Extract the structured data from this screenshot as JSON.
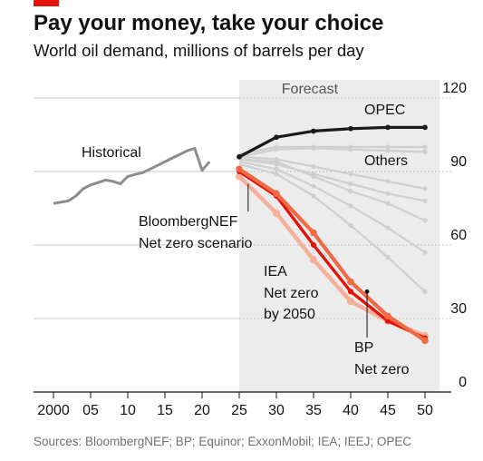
{
  "header": {
    "title": "Pay your money, take your choice",
    "subtitle": "World oil demand, millions of barrels per day",
    "accent_color": "#e3120b"
  },
  "footer": {
    "source": "Sources: BloombergNEF; BP; Equinor; ExxonMobil; IEA; IEEJ; OPEC"
  },
  "chart_data": {
    "type": "line",
    "x_tick_labels": [
      "2000",
      "05",
      "10",
      "15",
      "20",
      "25",
      "30",
      "35",
      "40",
      "45",
      "50"
    ],
    "x_ticks": [
      2000,
      2005,
      2010,
      2015,
      2020,
      2025,
      2030,
      2035,
      2040,
      2045,
      2050
    ],
    "xlim": [
      1997,
      2052
    ],
    "y_ticks": [
      0,
      30,
      60,
      90,
      120
    ],
    "y_tick_labels": [
      "0",
      "30",
      "60",
      "90",
      "120"
    ],
    "ylim": [
      0,
      120
    ],
    "y_axis_side": "right",
    "grid": true,
    "forecast_region": {
      "label": "Forecast",
      "from": 2025,
      "to": 2050
    },
    "colors": {
      "historical": "#8c8c8c",
      "opec": "#1a1a1a",
      "others": "#cfcfcf",
      "bloombergnef": "#e3120b",
      "iea": "#f5b09a",
      "bp": "#f06a45",
      "forecast_shade": "#ececec"
    },
    "series": [
      {
        "key": "historical",
        "label": "Historical",
        "x": [
          2000,
          2001,
          2002,
          2003,
          2004,
          2005,
          2006,
          2007,
          2008,
          2009,
          2010,
          2011,
          2012,
          2013,
          2014,
          2015,
          2016,
          2017,
          2018,
          2019,
          2020,
          2021
        ],
        "y": [
          77,
          77.5,
          78,
          80,
          83,
          84.5,
          85.5,
          86.5,
          86,
          85,
          88,
          88.8,
          89.5,
          91,
          92.5,
          94,
          95.5,
          97,
          98.5,
          99.5,
          90.5,
          94
        ]
      },
      {
        "key": "opec",
        "label": "OPEC",
        "x": [
          2025,
          2030,
          2035,
          2040,
          2045,
          2050
        ],
        "y": [
          96,
          104,
          106.5,
          107.5,
          108,
          108
        ]
      },
      {
        "key": "others",
        "label": "Others",
        "lines": [
          {
            "x": [
              2025,
              2030,
              2035,
              2040,
              2045,
              2050
            ],
            "y": [
              97,
              100,
              100,
              100,
              100,
              100
            ]
          },
          {
            "x": [
              2025,
              2030,
              2035,
              2040,
              2045,
              2050
            ],
            "y": [
              96,
              99,
              99.5,
              99,
              98.5,
              98
            ]
          },
          {
            "x": [
              2025,
              2030,
              2035,
              2040,
              2045,
              2050
            ],
            "y": [
              96,
              95,
              92,
              89,
              86,
              83
            ]
          },
          {
            "x": [
              2025,
              2030,
              2035,
              2040,
              2045,
              2050
            ],
            "y": [
              95,
              93,
              89,
              85,
              81,
              78
            ]
          },
          {
            "x": [
              2025,
              2030,
              2035,
              2040,
              2045,
              2050
            ],
            "y": [
              95,
              94,
              88,
              82,
              77,
              70
            ]
          },
          {
            "x": [
              2025,
              2030,
              2035,
              2040,
              2045,
              2050
            ],
            "y": [
              94,
              91,
              84,
              76,
              67,
              57
            ]
          },
          {
            "x": [
              2025,
              2030,
              2035,
              2040,
              2045,
              2050
            ],
            "y": [
              93,
              89,
              80,
              68,
              55,
              41
            ]
          }
        ]
      },
      {
        "key": "iea",
        "label": "IEA Net zero by 2050",
        "x": [
          2025,
          2030,
          2035,
          2040,
          2045,
          2050
        ],
        "y": [
          88,
          73,
          54,
          37,
          29,
          23
        ]
      },
      {
        "key": "bloombergnef",
        "label": "BloombergNEF Net zero scenario",
        "x": [
          2025,
          2030,
          2035,
          2040,
          2045,
          2050
        ],
        "y": [
          90,
          80,
          60,
          41,
          29,
          22
        ]
      },
      {
        "key": "bp",
        "label": "BP Net zero",
        "x": [
          2025,
          2030,
          2035,
          2040,
          2045,
          2050
        ],
        "y": [
          91,
          81,
          65,
          45,
          31,
          21
        ]
      }
    ],
    "annotations": {
      "opec": "OPEC",
      "others": "Others",
      "historical": "Historical",
      "bloombergnef_line1": "BloombergNEF",
      "bloombergnef_line2": "Net zero scenario",
      "iea_line1": "IEA",
      "iea_line2": "Net zero",
      "iea_line3": "by 2050",
      "bp_line1": "BP",
      "bp_line2": "Net zero"
    }
  }
}
